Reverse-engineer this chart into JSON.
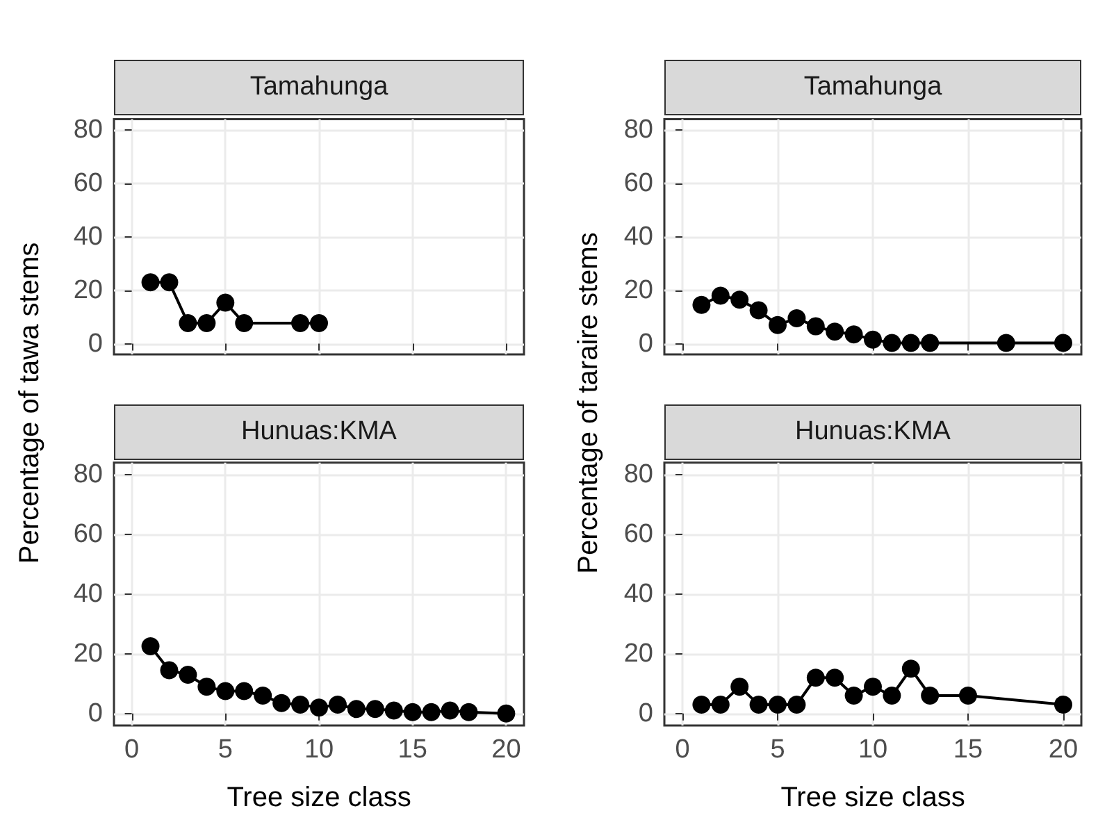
{
  "chart_data": [
    {
      "type": "line",
      "title": "Tamahunga",
      "ylabel": "Percentage of tawa stems",
      "marker": "circle",
      "grid": true,
      "tick_labels": "y",
      "xlim": [
        -0.95,
        20.95
      ],
      "xticks": [
        0,
        5,
        10,
        15,
        20
      ],
      "ylim": [
        -4,
        84
      ],
      "yticks": [
        0,
        20,
        40,
        60,
        80
      ],
      "series": [
        {
          "color": "#000000",
          "x": [
            1,
            2,
            3,
            4,
            5,
            6,
            9,
            10
          ],
          "values": [
            23,
            23,
            7.7,
            7.7,
            15.4,
            7.7,
            7.7,
            7.7
          ]
        }
      ]
    },
    {
      "type": "line",
      "title": "Tamahunga",
      "ylabel": "Percentage of taraire stems",
      "marker": "circle",
      "grid": true,
      "tick_labels": "y",
      "xlim": [
        -0.95,
        20.95
      ],
      "xticks": [
        0,
        5,
        10,
        15,
        20
      ],
      "ylim": [
        -4,
        84
      ],
      "yticks": [
        0,
        20,
        40,
        60,
        80
      ],
      "series": [
        {
          "color": "#000000",
          "x": [
            1,
            2,
            3,
            4,
            5,
            6,
            7,
            8,
            9,
            10,
            11,
            12,
            13,
            17,
            20
          ],
          "values": [
            14.5,
            18,
            16.5,
            12.5,
            7,
            9.5,
            6.5,
            4.5,
            3.5,
            1.5,
            0.3,
            0.3,
            0.3,
            0.3,
            0.3
          ]
        }
      ]
    },
    {
      "type": "line",
      "title": "Hunuas:KMA",
      "xlabel": "Tree size class",
      "marker": "circle",
      "grid": true,
      "xlim": [
        -0.95,
        20.95
      ],
      "xticks": [
        0,
        5,
        10,
        15,
        20
      ],
      "ylim": [
        -4,
        84
      ],
      "yticks": [
        0,
        20,
        40,
        60,
        80
      ],
      "series": [
        {
          "color": "#000000",
          "x": [
            1,
            2,
            3,
            4,
            5,
            6,
            7,
            8,
            9,
            10,
            11,
            12,
            13,
            14,
            15,
            16,
            17,
            18,
            20
          ],
          "values": [
            22.5,
            14.5,
            13,
            9,
            7.5,
            7.5,
            6,
            3.5,
            3,
            2,
            3,
            1.5,
            1.5,
            1,
            0.5,
            0.5,
            1,
            0.5,
            0
          ]
        }
      ]
    },
    {
      "type": "line",
      "title": "Hunuas:KMA",
      "xlabel": "Tree size class",
      "marker": "circle",
      "grid": true,
      "xlim": [
        -0.95,
        20.95
      ],
      "xticks": [
        0,
        5,
        10,
        15,
        20
      ],
      "ylim": [
        -4,
        84
      ],
      "yticks": [
        0,
        20,
        40,
        60,
        80
      ],
      "series": [
        {
          "color": "#000000",
          "x": [
            1,
            2,
            3,
            4,
            5,
            6,
            7,
            8,
            9,
            10,
            11,
            12,
            13,
            15,
            20
          ],
          "values": [
            3,
            3,
            9,
            3,
            3,
            3,
            12,
            12,
            6,
            9,
            6,
            15,
            6,
            6,
            3
          ]
        }
      ]
    }
  ]
}
